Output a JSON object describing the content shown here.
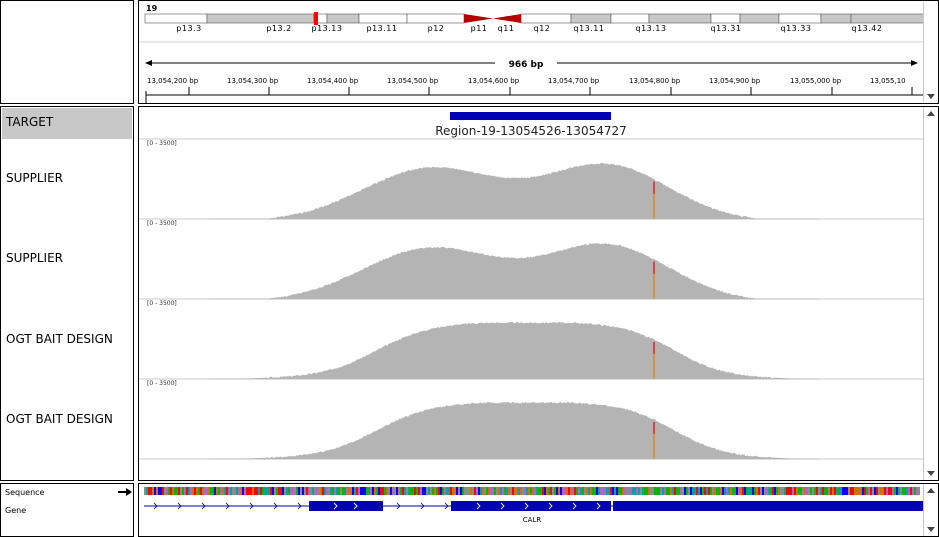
{
  "ideogram": {
    "chromosome": "19",
    "bands": [
      "p13.3",
      "p13.2",
      "p13.13",
      "p13.11",
      "p12",
      "p11",
      "q11",
      "q12",
      "q13.11",
      "q13.13",
      "q13.31",
      "q13.33",
      "q13.42"
    ]
  },
  "ruler": {
    "span_label": "966 bp",
    "ticks": [
      "13,054,200 bp",
      "13,054,300 bp",
      "13,054,400 bp",
      "13,054,500 bp",
      "13,054,600 bp",
      "13,054,700 bp",
      "13,054,800 bp",
      "13,054,900 bp",
      "13,055,000 bp",
      "13,055,10"
    ]
  },
  "tracks": {
    "target": {
      "name": "TARGET",
      "region_label": "Region-19-13054526-13054727"
    },
    "coverage": [
      {
        "name": "SUPPLIER",
        "range": "[0 - 3500]"
      },
      {
        "name": "SUPPLIER",
        "range": "[0 - 3500]"
      },
      {
        "name": "OGT BAIT DESIGN",
        "range": "[0 - 3500]"
      },
      {
        "name": "OGT BAIT DESIGN",
        "range": "[0 - 3500]"
      }
    ]
  },
  "bottom": {
    "sequence_label": "Sequence",
    "gene_label": "Gene",
    "gene_name": "CALR"
  },
  "colors": {
    "coverage": "#b4b4b4",
    "target_feature": "#0000b4",
    "gene": "#0000b4",
    "centromere": "#b40000",
    "mismatch_red": "#d22020",
    "mismatch_orange": "#d28c28"
  }
}
